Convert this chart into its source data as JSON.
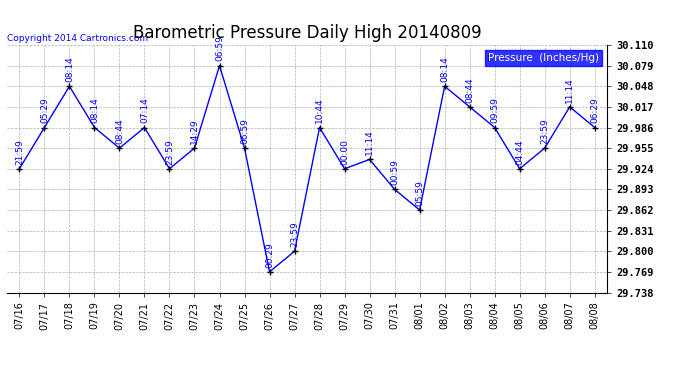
{
  "title": "Barometric Pressure Daily High 20140809",
  "copyright": "Copyright 2014 Cartronics.com",
  "dates": [
    "07/16",
    "07/17",
    "07/18",
    "07/19",
    "07/20",
    "07/21",
    "07/22",
    "07/23",
    "07/24",
    "07/25",
    "07/26",
    "07/27",
    "07/28",
    "07/29",
    "07/30",
    "07/31",
    "08/01",
    "08/02",
    "08/03",
    "08/04",
    "08/05",
    "08/06",
    "08/07",
    "08/08"
  ],
  "values": [
    29.924,
    29.986,
    30.048,
    29.986,
    29.955,
    29.986,
    29.924,
    29.955,
    30.079,
    29.955,
    29.769,
    29.8,
    29.986,
    29.924,
    29.938,
    29.893,
    29.862,
    30.048,
    30.017,
    29.986,
    29.924,
    29.955,
    30.017,
    29.986
  ],
  "annotations": [
    "21:59",
    "05:29",
    "08:14",
    "08:14",
    "08:44",
    "07:14",
    "23:59",
    "14:29",
    "06:59",
    "06:59",
    "00:29",
    "23:59",
    "10:44",
    "00:00",
    "11:14",
    "00:59",
    "05:59",
    "08:14",
    "08:44",
    "09:59",
    "04:44",
    "23:59",
    "11:14",
    "06:29"
  ],
  "ylim_min": 29.738,
  "ylim_max": 30.11,
  "yticks": [
    29.738,
    29.769,
    29.8,
    29.831,
    29.862,
    29.893,
    29.924,
    29.955,
    29.986,
    30.017,
    30.048,
    30.079,
    30.11
  ],
  "line_color": "blue",
  "marker_color": "black",
  "bg_color": "white",
  "grid_color": "#b0b0b0",
  "title_fontsize": 12,
  "legend_bg": "blue",
  "legend_fg": "white",
  "ann_fontsize": 6.5
}
